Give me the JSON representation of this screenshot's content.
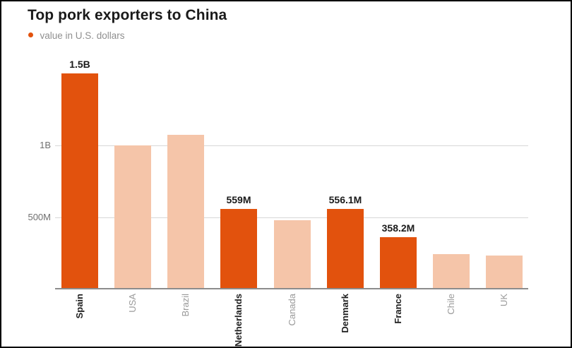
{
  "title": "Top pork exporters to China",
  "legend": {
    "label": "value in U.S. dollars"
  },
  "colors": {
    "highlight": "#e2520d",
    "muted": "#f5c5a9",
    "gridline": "#d8d8d8",
    "axis": "#8c8c8c",
    "title_text": "#1a1a1a",
    "legend_text": "#8f8f8f"
  },
  "y_axis": {
    "ticks": [
      {
        "label": "1B",
        "value": 1000
      },
      {
        "label": "500M",
        "value": 500
      }
    ]
  },
  "chart_data": {
    "type": "bar",
    "title": "Top pork exporters to China",
    "subtitle": "value in U.S. dollars",
    "categories": [
      "Spain",
      "USA",
      "Brazil",
      "Netherlands",
      "Canada",
      "Denmark",
      "France",
      "Chile",
      "UK"
    ],
    "values": [
      1500,
      1000,
      1075,
      559,
      480,
      556.1,
      358.2,
      240,
      230
    ],
    "value_unit": "millions of U.S. dollars",
    "bar_labels": [
      "1.5B",
      null,
      null,
      "559M",
      null,
      "556.1M",
      "358.2M",
      null,
      null
    ],
    "highlighted": [
      true,
      false,
      false,
      true,
      false,
      true,
      true,
      false,
      false
    ],
    "xlabel": "",
    "ylabel": "value in U.S. dollars",
    "ylim": [
      0,
      1530
    ],
    "grid": "horizontal",
    "legend_position": "top-left"
  }
}
